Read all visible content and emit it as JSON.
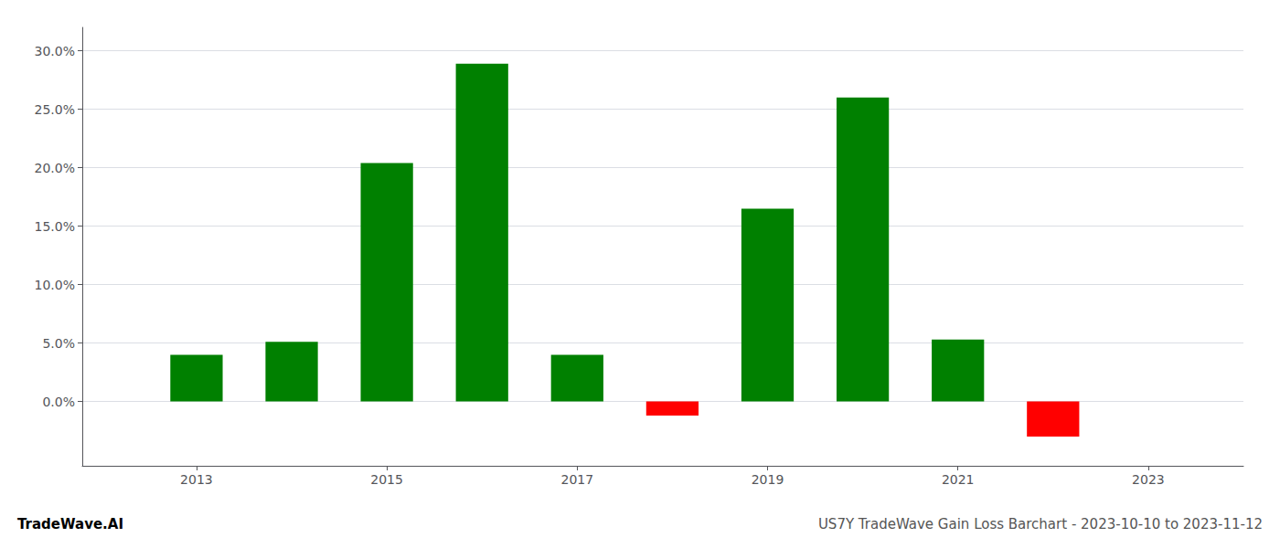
{
  "chart_data": {
    "type": "bar",
    "title": "US7Y TradeWave Gain Loss Barchart - 2023-10-10 to 2023-11-12",
    "annotations": [
      "TradeWave.AI"
    ],
    "x": [
      2013,
      2014,
      2015,
      2016,
      2017,
      2018,
      2019,
      2020,
      2021,
      2022,
      2023
    ],
    "values": [
      0.04,
      0.051,
      0.204,
      0.289,
      0.04,
      -0.012,
      0.165,
      0.26,
      0.053,
      -0.03,
      null
    ],
    "colors": [
      "#008000",
      "#008000",
      "#008000",
      "#008000",
      "#008000",
      "#ff0000",
      "#008000",
      "#008000",
      "#008000",
      "#ff0000",
      null
    ],
    "xlim": [
      2011.8,
      2024.0
    ],
    "xticks": [
      2013,
      2015,
      2017,
      2019,
      2021,
      2023
    ],
    "ylim": [
      -0.055,
      0.32
    ],
    "yticks": [
      {
        "value": 0.0,
        "label": "0.0%"
      },
      {
        "value": 0.05,
        "label": "5.0%"
      },
      {
        "value": 0.1,
        "label": "10.0%"
      },
      {
        "value": 0.15,
        "label": "15.0%"
      },
      {
        "value": 0.2,
        "label": "20.0%"
      },
      {
        "value": 0.25,
        "label": "25.0%"
      },
      {
        "value": 0.3,
        "label": "30.0%"
      }
    ],
    "grid": true
  }
}
